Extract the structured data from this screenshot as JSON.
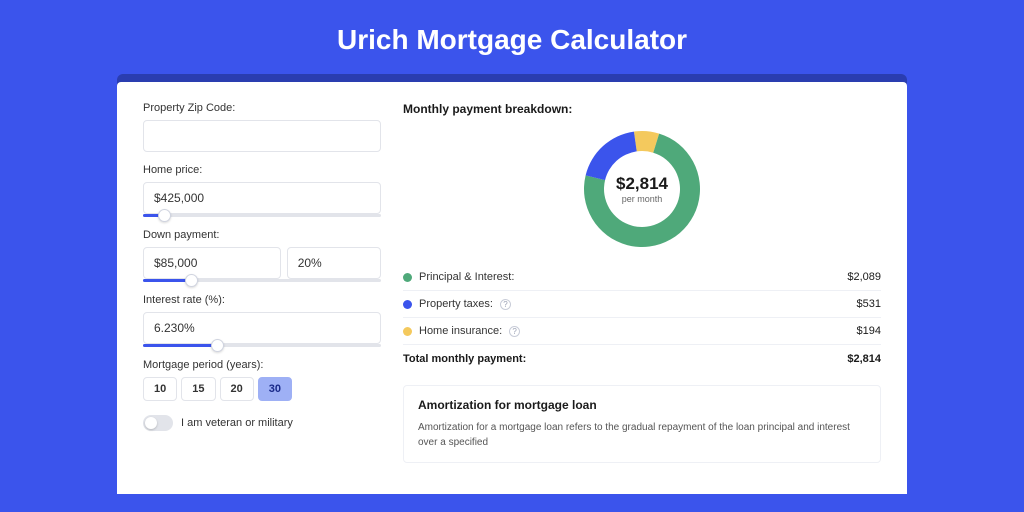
{
  "page": {
    "title": "Urich Mortgage Calculator",
    "bg_color": "#3b54ec",
    "card_shadow_color": "#2a3db0",
    "card_bg": "#ffffff"
  },
  "form": {
    "zip": {
      "label": "Property Zip Code:",
      "value": ""
    },
    "home_price": {
      "label": "Home price:",
      "value": "$425,000",
      "slider_pct": 9
    },
    "down_payment": {
      "label": "Down payment:",
      "value": "$85,000",
      "pct": "20%",
      "slider_pct": 20
    },
    "interest": {
      "label": "Interest rate (%):",
      "value": "6.230%",
      "slider_pct": 31
    },
    "period": {
      "label": "Mortgage period (years):",
      "options": [
        "10",
        "15",
        "20",
        "30"
      ],
      "selected": "30"
    },
    "veteran": {
      "label": "I am veteran or military",
      "on": false
    }
  },
  "breakdown": {
    "title": "Monthly payment breakdown:",
    "donut": {
      "amount": "$2,814",
      "sublabel": "per month",
      "segments": [
        {
          "label": "Principal & Interest:",
          "value": "$2,089",
          "color": "#4fa97a",
          "pct": 74
        },
        {
          "label": "Property taxes:",
          "value": "$531",
          "color": "#3b54ec",
          "pct": 19
        },
        {
          "label": "Home insurance:",
          "value": "$194",
          "color": "#f4c95d",
          "pct": 7
        }
      ]
    },
    "total": {
      "label": "Total monthly payment:",
      "value": "$2,814"
    }
  },
  "amortization": {
    "title": "Amortization for mortgage loan",
    "text": "Amortization for a mortgage loan refers to the gradual repayment of the loan principal and interest over a specified"
  },
  "colors": {
    "border": "#e2e4ea",
    "slider_fill": "#3b54ec",
    "active_period_bg": "#9eb0f5",
    "text": "#333333"
  }
}
